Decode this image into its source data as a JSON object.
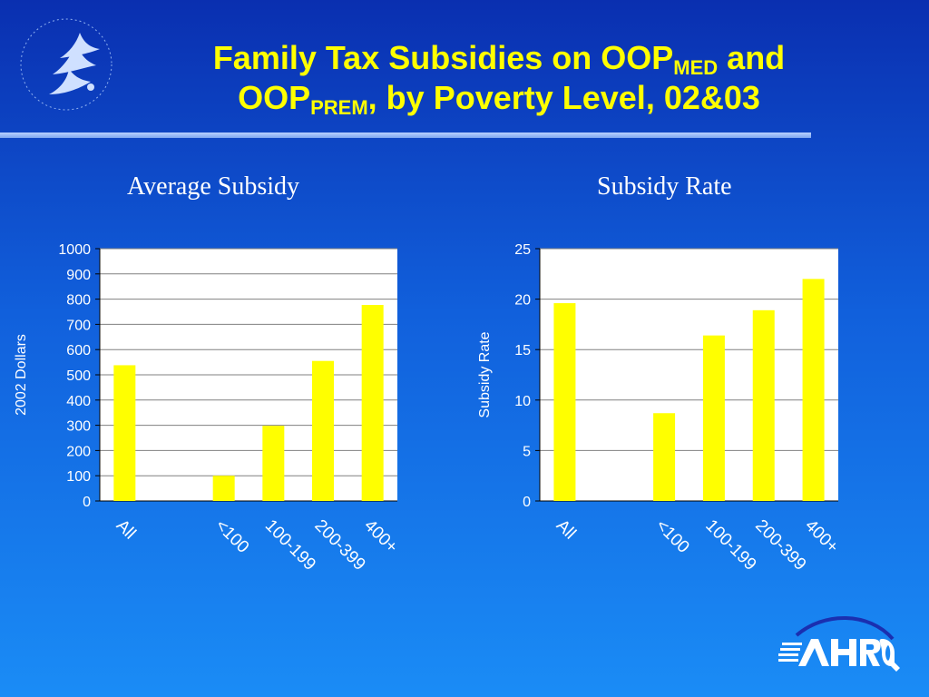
{
  "title": {
    "line1_pre": "Family Tax Subsidies on OOP",
    "line1_sub": "MED",
    "line1_post": " and",
    "line2_pre": "OOP",
    "line2_sub": "PREM",
    "line2_post": ", by Poverty Level, 02&03"
  },
  "logos": {
    "left": "hhs-eagle-seal",
    "right": "ahrq-logo"
  },
  "colors": {
    "bar": "#ffff00",
    "title": "#ffff00",
    "text": "#ffffff",
    "plot_bg": "#ffffff"
  },
  "chart_data": [
    {
      "type": "bar",
      "title": "Average Subsidy",
      "xlabel": "",
      "ylabel": "2002 Dollars",
      "categories": [
        "All",
        "",
        "<100",
        "100-199",
        "200-399",
        "400+"
      ],
      "values": [
        538,
        null,
        100,
        298,
        555,
        777
      ],
      "ylim": [
        0,
        1000
      ],
      "yticks": [
        0,
        100,
        200,
        300,
        400,
        500,
        600,
        700,
        800,
        900,
        1000
      ],
      "grid": true,
      "legend": "none"
    },
    {
      "type": "bar",
      "title": "Subsidy Rate",
      "xlabel": "",
      "ylabel": "Subsidy Rate",
      "categories": [
        "All",
        "",
        "<100",
        "100-199",
        "200-399",
        "400+"
      ],
      "values": [
        19.6,
        null,
        8.7,
        16.4,
        18.9,
        22.0
      ],
      "ylim": [
        0,
        25
      ],
      "yticks": [
        0,
        5,
        10,
        15,
        20,
        25
      ],
      "grid": true,
      "legend": "none"
    }
  ]
}
